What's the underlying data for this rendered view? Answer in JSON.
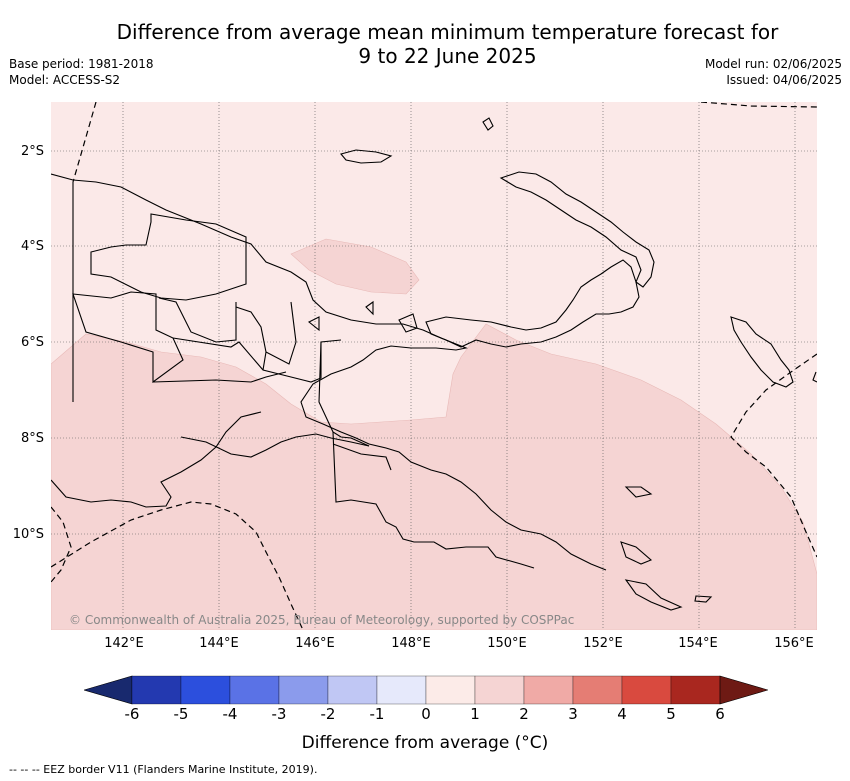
{
  "title_line1": "Difference from average mean minimum temperature forecast for",
  "title_line2": "9 to 22 June 2025",
  "meta_left": {
    "base_period": "Base period: 1981-2018",
    "model": "Model: ACCESS-S2"
  },
  "meta_right": {
    "model_run": "Model run: 02/06/2025",
    "issued": "Issued: 04/06/2025"
  },
  "lat_labels": [
    "2°S",
    "4°S",
    "6°S",
    "8°S",
    "10°S"
  ],
  "lon_labels": [
    "142°E",
    "144°E",
    "146°E",
    "148°E",
    "150°E",
    "152°E",
    "154°E",
    "156°E"
  ],
  "copyright": "© Commonwealth of Australia 2025, Bureau of Meteorology, supported by COSPPac",
  "colorbar": {
    "label": "Difference from average (°C)",
    "ticks": [
      "-6",
      "-5",
      "-4",
      "-3",
      "-2",
      "-1",
      "0",
      "1",
      "2",
      "3",
      "4",
      "5",
      "6"
    ],
    "colors": [
      "#18296e",
      "#2339b0",
      "#2c4fdd",
      "#5a72e6",
      "#8b9bec",
      "#c0c7f4",
      "#e6e9fb",
      "#fcebe8",
      "#f5d4d3",
      "#f0aaa6",
      "#e57d74",
      "#d94a3f",
      "#a9271f",
      "#6e1a14"
    ]
  },
  "legend": {
    "colors": {
      "background": "#fbe9e8",
      "anomaly_1_2": "#f5d4d3",
      "eez_line": "#000000",
      "grid": "#555555"
    },
    "footnote": "--  --  -- EEZ border V11 (Flanders Marine Institute, 2019)."
  }
}
